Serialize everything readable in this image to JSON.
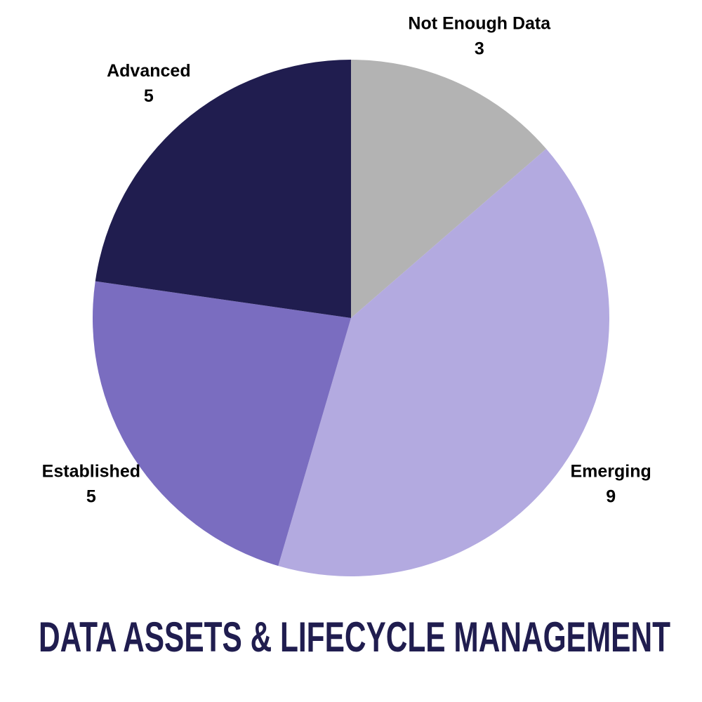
{
  "chart_data": {
    "type": "pie",
    "title": "DATA ASSETS & LIFECYCLE MANAGEMENT",
    "categories": [
      "Not Enough Data",
      "Emerging",
      "Established",
      "Advanced"
    ],
    "values": [
      3,
      9,
      5,
      5
    ],
    "colors": [
      "#b3b3b3",
      "#b3aae0",
      "#7a6dc0",
      "#201d4f"
    ]
  }
}
